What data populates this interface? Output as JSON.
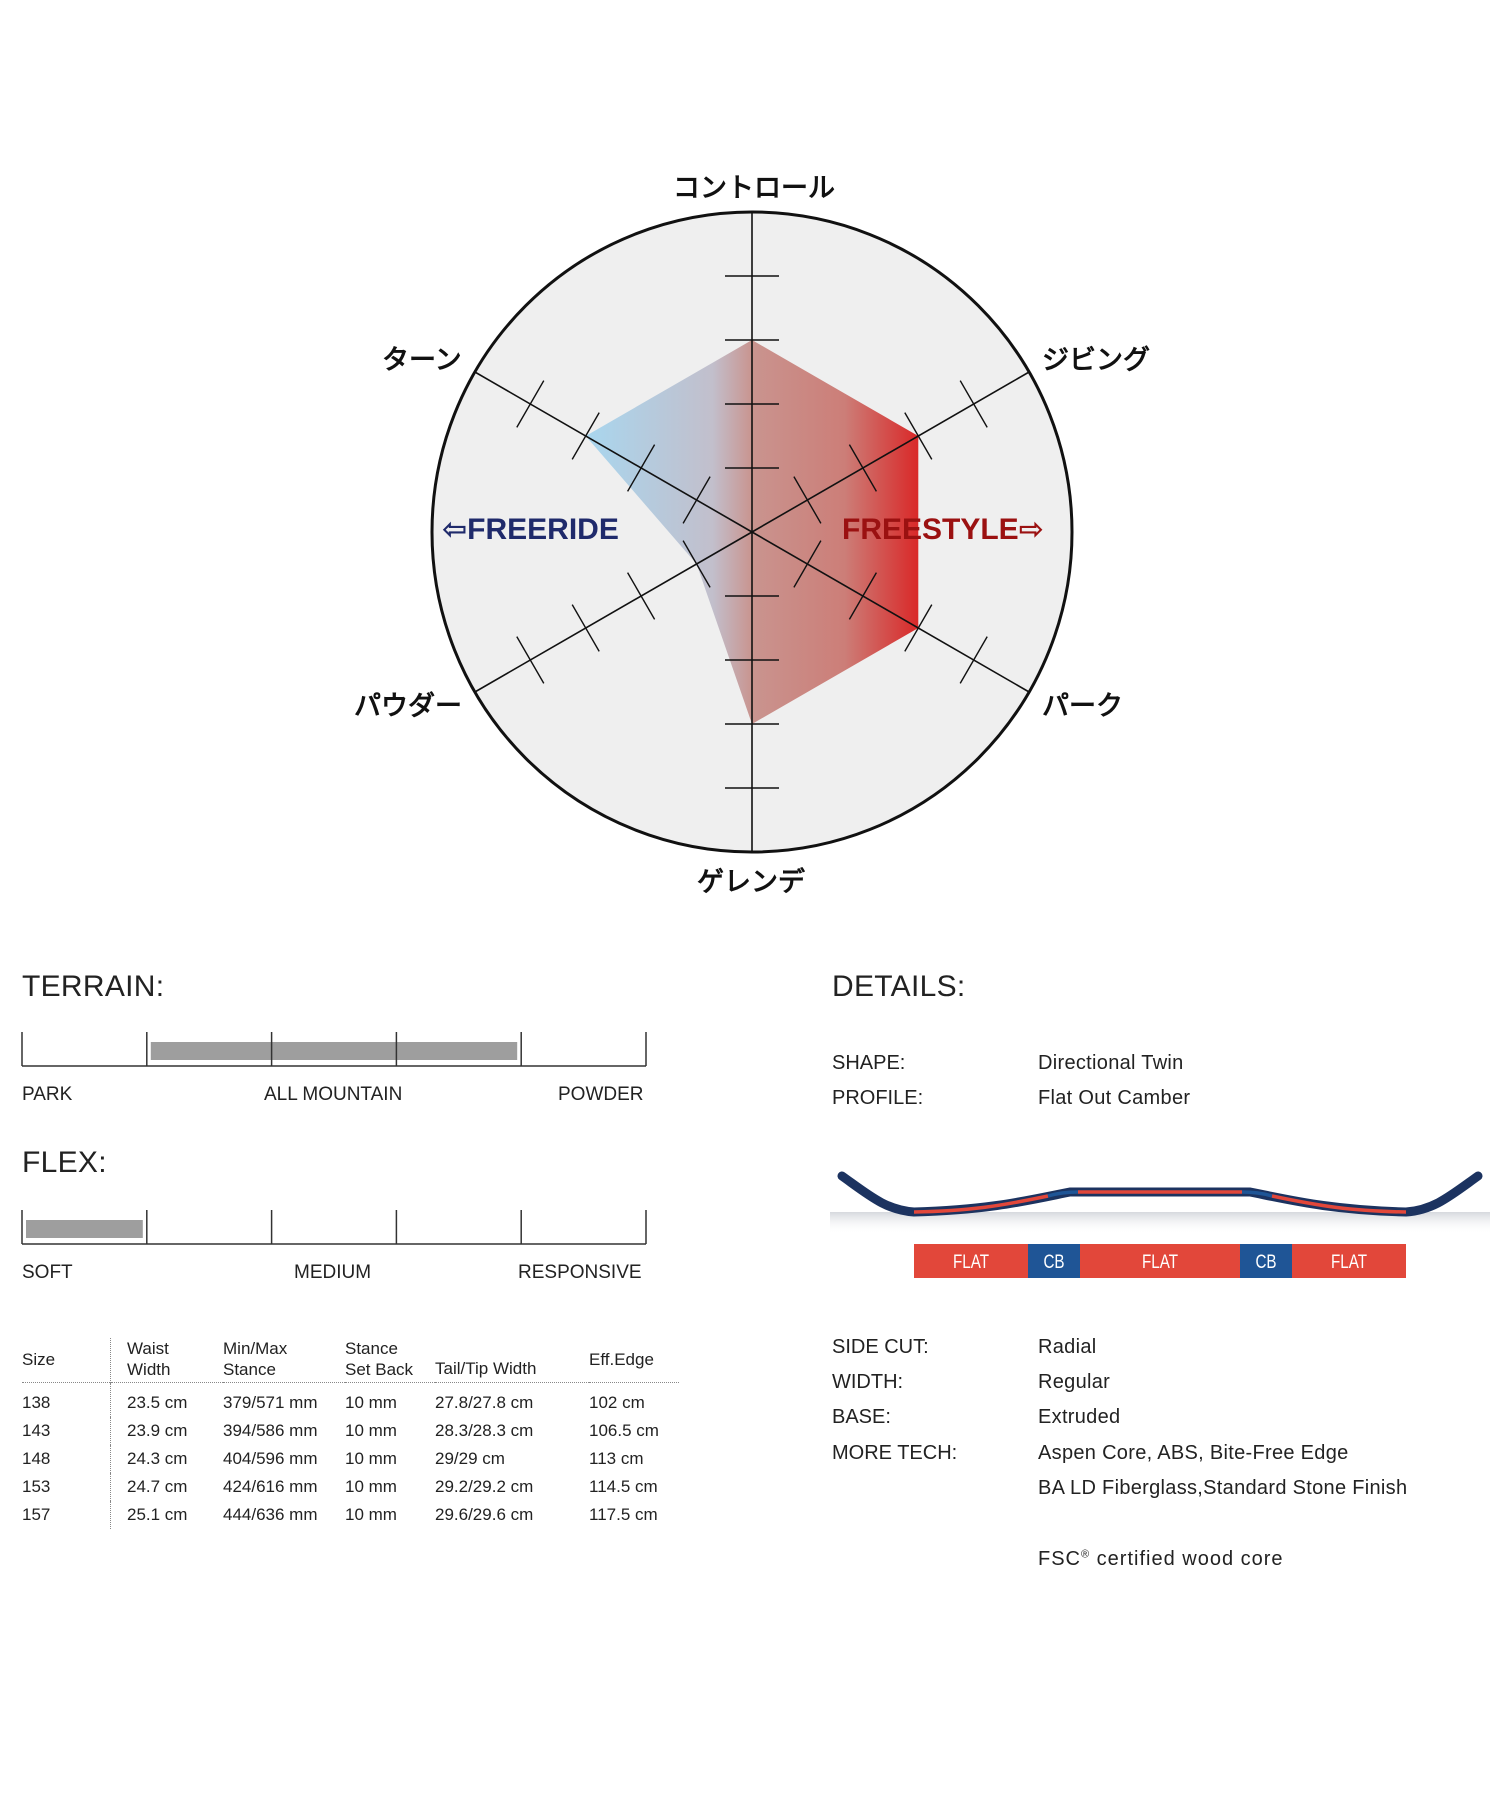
{
  "chart_data": {
    "type": "radar",
    "axes": [
      "コントロール",
      "ジビング",
      "パーク",
      "ゲレンデ",
      "パウダー",
      "ターン"
    ],
    "scale_ticks": 7,
    "values": [
      3,
      3,
      3,
      3,
      1,
      3
    ],
    "left_label": "FREERIDE",
    "right_label": "FREESTYLE",
    "colors": {
      "freeride": "#a9d6ee",
      "freestyle": "#c8272b",
      "core": "#c9948f",
      "left_text": "#1f2a6b",
      "right_text": "#9b1111"
    }
  },
  "terrain": {
    "title": "TERRAIN:",
    "labels": [
      "PARK",
      "ALL MOUNTAIN",
      "POWDER"
    ],
    "range": [
      1,
      4
    ],
    "segments": 5
  },
  "flex": {
    "title": "FLEX:",
    "labels": [
      "SOFT",
      "MEDIUM",
      "RESPONSIVE"
    ],
    "range": [
      0,
      1
    ],
    "segments": 5
  },
  "table": {
    "headers": [
      [
        "Size"
      ],
      [
        "Waist",
        "Width"
      ],
      [
        "Min/Max",
        "Stance"
      ],
      [
        "Stance",
        "Set Back"
      ],
      [
        "Tail/Tip Width"
      ],
      [
        "Eff.Edge"
      ]
    ],
    "rows": [
      [
        "138",
        "23.5 cm",
        "379/571 mm",
        "10 mm",
        "27.8/27.8 cm",
        "102 cm"
      ],
      [
        "143",
        "23.9 cm",
        "394/586 mm",
        "10 mm",
        "28.3/28.3 cm",
        "106.5 cm"
      ],
      [
        "148",
        "24.3 cm",
        "404/596 mm",
        "10 mm",
        "29/29 cm",
        "113 cm"
      ],
      [
        "153",
        "24.7 cm",
        "424/616 mm",
        "10 mm",
        "29.2/29.2 cm",
        "114.5 cm"
      ],
      [
        "157",
        "25.1 cm",
        "444/636 mm",
        "10 mm",
        "29.6/29.6 cm",
        "117.5 cm"
      ]
    ]
  },
  "details": {
    "title": "DETAILS:",
    "shape_label": "SHAPE:",
    "shape_value": "Directional Twin",
    "profile_label": "PROFILE:",
    "profile_value": "Flat Out Camber",
    "profile_segments": [
      "FLAT",
      "CB",
      "FLAT",
      "CB",
      "FLAT"
    ],
    "profile_colors": {
      "flat": "#e2473a",
      "cb": "#1f5596",
      "outline": "#1c3360"
    },
    "sidecut_label": "SIDE CUT:",
    "sidecut_value": "Radial",
    "width_label": "WIDTH:",
    "width_value": "Regular",
    "base_label": "BASE:",
    "base_value": "Extruded",
    "moretech_label": "MORE TECH:",
    "moretech_value_1": "Aspen Core, ABS, Bite-Free Edge",
    "moretech_value_2": "BA LD Fiberglass,Standard Stone Finish",
    "fsc_prefix": "FSC",
    "fsc_mark": "®",
    "fsc_suffix": " certified wood core"
  }
}
